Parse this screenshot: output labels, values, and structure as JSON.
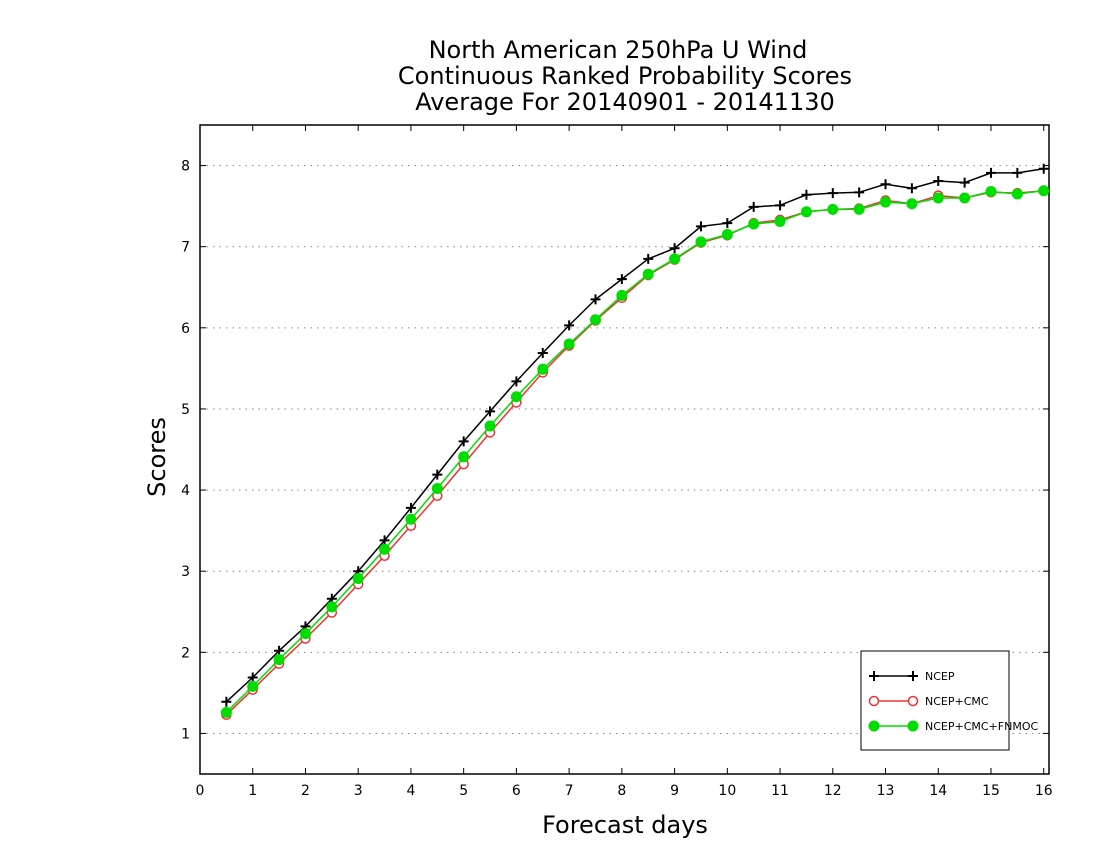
{
  "chart_data": {
    "type": "line",
    "title": [
      "North American 250hPa U Wind",
      "Continuous Ranked Probability Scores",
      "Average For 20140901 - 20141130"
    ],
    "xlabel": "Forecast days",
    "ylabel": "Scores",
    "xlim": [
      0,
      16.1
    ],
    "ylim": [
      0.5,
      8.5
    ],
    "xticks": [
      "0",
      "1",
      "2",
      "3",
      "4",
      "5",
      "6",
      "7",
      "8",
      "9",
      "10",
      "11",
      "12",
      "13",
      "14",
      "15",
      "16"
    ],
    "yticks": [
      "1",
      "2",
      "3",
      "4",
      "5",
      "6",
      "7",
      "8"
    ],
    "grid": "horizontal dotted",
    "legend_position": "bottom-right",
    "x": [
      0.5,
      1,
      1.5,
      2,
      2.5,
      3,
      3.5,
      4,
      4.5,
      5,
      5.5,
      6,
      6.5,
      7,
      7.5,
      8,
      8.5,
      9,
      9.5,
      10,
      10.5,
      11,
      11.5,
      12,
      12.5,
      13,
      13.5,
      14,
      14.5,
      15,
      15.5,
      16
    ],
    "series": [
      {
        "name": "NCEP",
        "color": "#000000",
        "marker": "plus",
        "values": [
          1.39,
          1.69,
          2.02,
          2.32,
          2.66,
          3.0,
          3.38,
          3.78,
          4.19,
          4.6,
          4.97,
          5.34,
          5.69,
          6.03,
          6.35,
          6.6,
          6.85,
          6.98,
          7.25,
          7.29,
          7.49,
          7.51,
          7.64,
          7.66,
          7.67,
          7.77,
          7.72,
          7.81,
          7.79,
          7.91,
          7.91,
          7.96
        ]
      },
      {
        "name": "NCEP+CMC",
        "color": "#ee3333",
        "marker": "open-circle",
        "values": [
          1.23,
          1.54,
          1.86,
          2.17,
          2.49,
          2.84,
          3.19,
          3.56,
          3.93,
          4.32,
          4.71,
          5.08,
          5.45,
          5.78,
          6.09,
          6.37,
          6.65,
          6.84,
          7.05,
          7.14,
          7.29,
          7.33,
          7.43,
          7.46,
          7.47,
          7.57,
          7.53,
          7.63,
          7.6,
          7.67,
          7.66,
          7.69
        ]
      },
      {
        "name": "NCEP+CMC+FNMOC",
        "color": "#00dd00",
        "marker": "filled-circle",
        "values": [
          1.26,
          1.58,
          1.91,
          2.23,
          2.56,
          2.91,
          3.27,
          3.64,
          4.02,
          4.41,
          4.79,
          5.15,
          5.49,
          5.8,
          6.1,
          6.4,
          6.66,
          6.85,
          7.06,
          7.15,
          7.28,
          7.31,
          7.43,
          7.46,
          7.46,
          7.55,
          7.53,
          7.6,
          7.6,
          7.68,
          7.65,
          7.69
        ]
      }
    ]
  }
}
